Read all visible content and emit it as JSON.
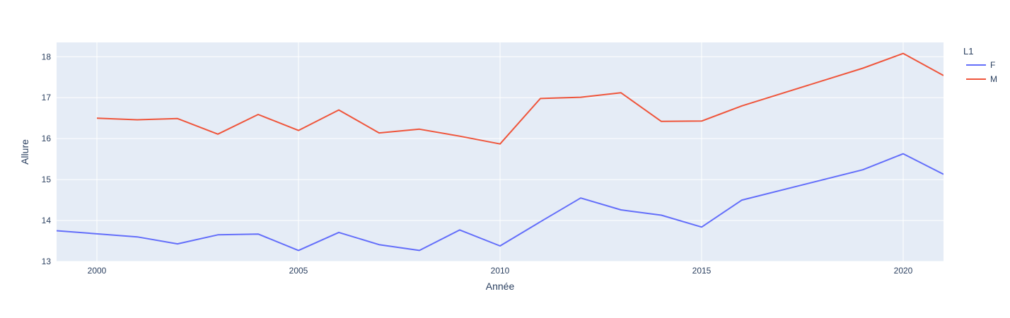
{
  "chart_data": {
    "type": "line",
    "xlabel": "Année",
    "ylabel": "Allure",
    "xlim": [
      1999,
      2021
    ],
    "ylim": [
      13,
      18.35
    ],
    "xticks": [
      2000,
      2005,
      2010,
      2015,
      2020
    ],
    "yticks": [
      13,
      14,
      15,
      16,
      17,
      18
    ],
    "grid": true,
    "legend_title": "L1",
    "legend_position": "right",
    "colors": {
      "plot_bg": "#E5ECF6",
      "grid": "#ffffff",
      "text": "#2a3f5f"
    },
    "series": [
      {
        "name": "F",
        "color": "#636EFA",
        "x": [
          1999,
          2001,
          2002,
          2003,
          2004,
          2005,
          2006,
          2007,
          2008,
          2009,
          2010,
          2011,
          2012,
          2013,
          2014,
          2015,
          2016,
          2019,
          2020,
          2021
        ],
        "y": [
          13.75,
          13.6,
          13.43,
          13.65,
          13.67,
          13.27,
          13.71,
          13.41,
          13.27,
          13.77,
          13.38,
          13.97,
          14.55,
          14.26,
          14.13,
          13.84,
          14.5,
          15.24,
          15.63,
          15.13
        ]
      },
      {
        "name": "M",
        "color": "#EF553B",
        "x": [
          2000,
          2001,
          2002,
          2003,
          2004,
          2005,
          2006,
          2007,
          2008,
          2009,
          2010,
          2011,
          2012,
          2013,
          2014,
          2015,
          2016,
          2019,
          2020,
          2021
        ],
        "y": [
          16.5,
          16.46,
          16.49,
          16.11,
          16.59,
          16.2,
          16.7,
          16.14,
          16.23,
          16.06,
          15.87,
          16.98,
          17.01,
          17.12,
          16.42,
          16.43,
          16.8,
          17.72,
          18.08,
          17.54
        ]
      }
    ]
  }
}
